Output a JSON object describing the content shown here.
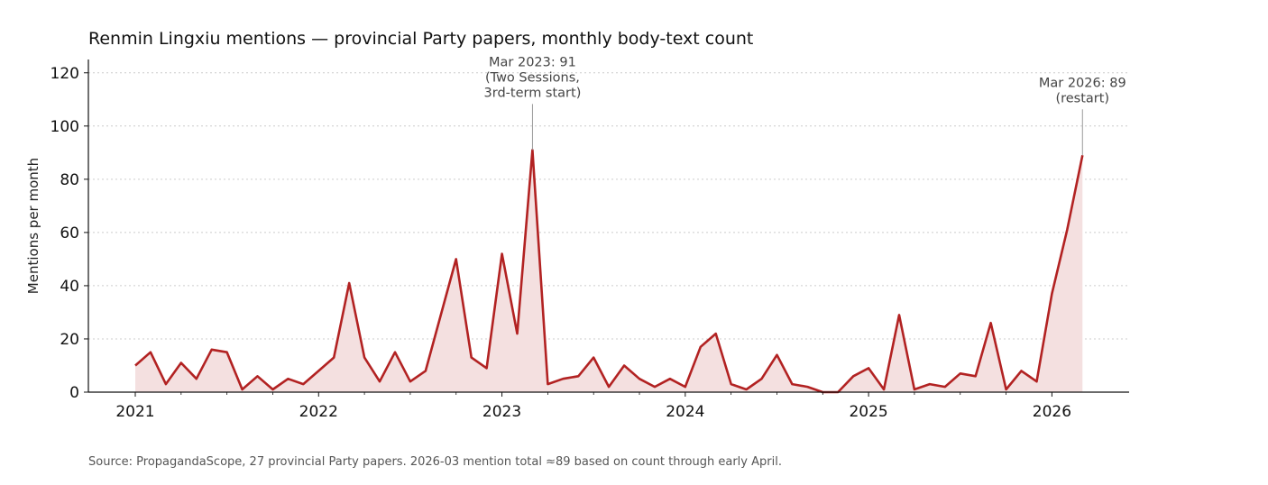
{
  "chart_data": {
    "type": "area",
    "title": "Renmin Lingxiu mentions — provincial Party papers, monthly body-text count",
    "xlabel": "",
    "ylabel": "Mentions per month",
    "ylim": [
      0,
      125
    ],
    "yticks": [
      0,
      20,
      40,
      60,
      80,
      100,
      120
    ],
    "xticks": [
      "2021",
      "2022",
      "2023",
      "2024",
      "2025",
      "2026"
    ],
    "grid": "horizontal dotted",
    "line_color": "#b22222",
    "fill_color": "#f4e0e0",
    "series": [
      {
        "x": [
          "2021-01",
          "2021-02",
          "2021-03",
          "2021-04",
          "2021-05",
          "2021-06",
          "2021-07",
          "2021-08",
          "2021-09",
          "2021-10",
          "2021-11",
          "2021-12",
          "2022-01",
          "2022-02",
          "2022-03",
          "2022-04",
          "2022-05",
          "2022-06",
          "2022-07",
          "2022-08",
          "2022-09",
          "2022-10",
          "2022-11",
          "2022-12",
          "2023-01",
          "2023-02",
          "2023-03",
          "2023-04",
          "2023-05",
          "2023-06",
          "2023-07",
          "2023-08",
          "2023-09",
          "2023-10",
          "2023-11",
          "2023-12",
          "2024-01",
          "2024-02",
          "2024-03",
          "2024-04",
          "2024-05",
          "2024-06",
          "2024-07",
          "2024-08",
          "2024-09",
          "2024-10",
          "2024-11",
          "2024-12",
          "2025-01",
          "2025-02",
          "2025-03",
          "2025-04",
          "2025-05",
          "2025-06",
          "2025-07",
          "2025-08",
          "2025-09",
          "2025-10",
          "2025-11",
          "2025-12",
          "2026-01",
          "2026-02",
          "2026-03"
        ],
        "values": [
          10,
          15,
          3,
          11,
          5,
          16,
          15,
          1,
          6,
          1,
          5,
          3,
          8,
          13,
          41,
          13,
          4,
          15,
          4,
          8,
          29,
          50,
          13,
          9,
          52,
          22,
          91,
          3,
          5,
          6,
          13,
          2,
          10,
          5,
          2,
          5,
          2,
          17,
          22,
          3,
          1,
          5,
          14,
          3,
          2,
          0,
          0,
          6,
          9,
          1,
          29,
          1,
          3,
          2,
          7,
          6,
          26,
          1,
          8,
          4,
          37,
          61,
          89
        ]
      }
    ],
    "annotations": [
      {
        "x": "2023-03",
        "y": 91,
        "lines": [
          "Mar 2023: 91",
          "(Two Sessions,",
          "3rd-term start)"
        ]
      },
      {
        "x": "2026-03",
        "y": 89,
        "lines": [
          "Mar 2026: 89",
          "(restart)"
        ]
      }
    ]
  },
  "source_note": "Source: PropagandaScope, 27 provincial Party papers. 2026-03 mention total ≈89 based on count through early April."
}
